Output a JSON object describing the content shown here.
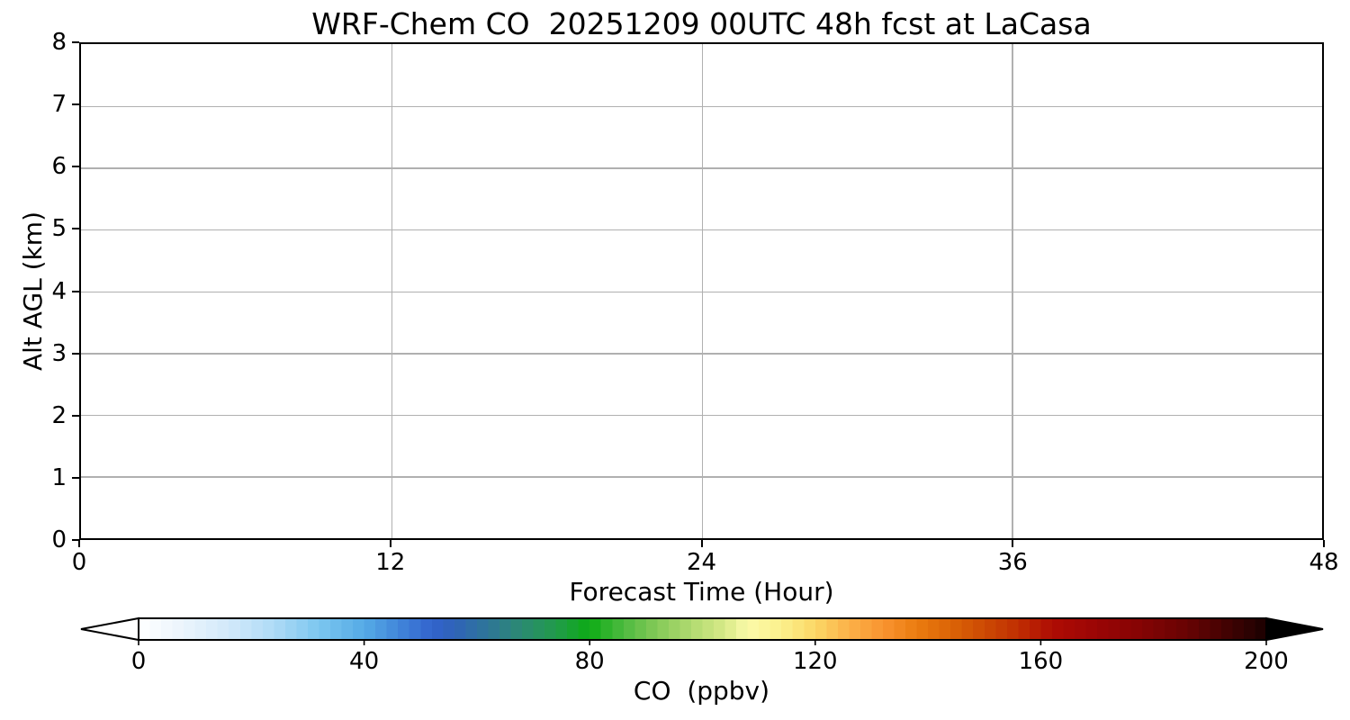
{
  "figure": {
    "background": "#ffffff",
    "spine_color": "#000000",
    "grid_color": "#b0b0b0",
    "text_color": "#000000"
  },
  "chart_data": {
    "type": "heatmap",
    "title": "WRF-Chem CO  20251209 00UTC 48h fcst at LaCasa",
    "xlabel": "Forecast Time (Hour)",
    "ylabel": "Alt AGL (km)",
    "xlim": [
      0,
      48
    ],
    "ylim": [
      0,
      8
    ],
    "x_ticks": [
      0,
      12,
      24,
      36,
      48
    ],
    "y_ticks": [
      0,
      1,
      2,
      3,
      4,
      5,
      6,
      7,
      8
    ],
    "grid": true,
    "values": [],
    "colorbar": {
      "label": "CO  (ppbv)",
      "ticks": [
        0,
        40,
        80,
        120,
        160,
        200
      ],
      "vmin": 0,
      "vmax": 200,
      "extend": "both",
      "level_step": 2,
      "under_color": "#ffffff",
      "over_color": "#000000",
      "colormap_stops": [
        [
          0,
          "#ffffff"
        ],
        [
          8,
          "#eaf4fc"
        ],
        [
          16,
          "#d2e9fa"
        ],
        [
          24,
          "#aedbf6"
        ],
        [
          32,
          "#7cc6ef"
        ],
        [
          40,
          "#55abe6"
        ],
        [
          46,
          "#4287da"
        ],
        [
          52,
          "#3263cd"
        ],
        [
          56,
          "#2f63b8"
        ],
        [
          62,
          "#2e7697"
        ],
        [
          68,
          "#2b8a71"
        ],
        [
          74,
          "#219b4b"
        ],
        [
          80,
          "#0dab15"
        ],
        [
          86,
          "#4eba40"
        ],
        [
          92,
          "#85ca58"
        ],
        [
          98,
          "#b0da70"
        ],
        [
          104,
          "#d8ea88"
        ],
        [
          108,
          "#fbfaa9"
        ],
        [
          114,
          "#fbf08c"
        ],
        [
          120,
          "#fbd766"
        ],
        [
          126,
          "#fbb148"
        ],
        [
          132,
          "#f99430"
        ],
        [
          138,
          "#ea7c10"
        ],
        [
          144,
          "#dc6406"
        ],
        [
          150,
          "#cc4a03"
        ],
        [
          156,
          "#c02e02"
        ],
        [
          162,
          "#ae0c04"
        ],
        [
          170,
          "#9a0505"
        ],
        [
          178,
          "#840404"
        ],
        [
          186,
          "#670303"
        ],
        [
          194,
          "#3d0202"
        ],
        [
          200,
          "#1a0101"
        ]
      ]
    }
  }
}
